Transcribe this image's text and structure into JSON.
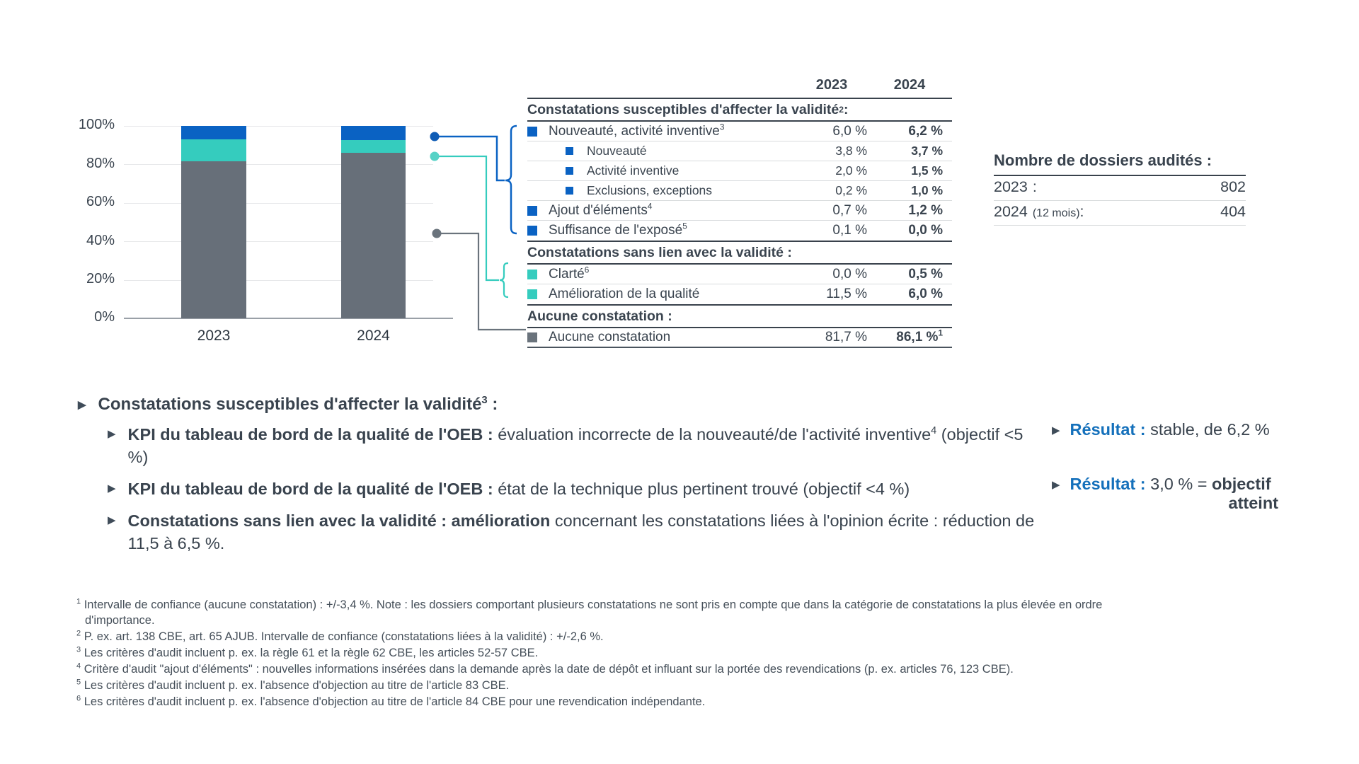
{
  "colors": {
    "validity_blue": "#0a62c3",
    "non_validity_teal": "#35ccbe",
    "no_finding_grey": "#676f79",
    "accent_blue_text": "#1470bb",
    "dark_rule": "#39424c"
  },
  "chart_data": {
    "type": "bar",
    "subtype": "stacked-100-percent",
    "categories": [
      "2023",
      "2024"
    ],
    "series": [
      {
        "name": "Constatations susceptibles d'affecter la validité",
        "color": "#0a62c3",
        "values": [
          6.8,
          7.4
        ]
      },
      {
        "name": "Constatations sans lien avec la validité",
        "color": "#35ccbe",
        "values": [
          11.5,
          6.5
        ]
      },
      {
        "name": "Aucune constatation",
        "color": "#676f79",
        "values": [
          81.7,
          86.1
        ]
      }
    ],
    "ylim": [
      0,
      100
    ],
    "yticks_top_down": [
      "100%",
      "80%",
      "60%",
      "40%",
      "20%",
      "0%"
    ],
    "grid": "horizontal",
    "legend": "none"
  },
  "table": {
    "col_headers": [
      "2023",
      "2024"
    ],
    "sections": [
      {
        "header": "Constatations susceptibles d'affecter la validité",
        "header_sup": "2",
        "header_after": " :",
        "rows": [
          {
            "label": "Nouveauté, activité inventive",
            "sup": "3",
            "v1": "6,0 %",
            "v2": "6,2 %"
          },
          {
            "label": "Nouveauté",
            "v1": "3,8 %",
            "v2": "3,7 %"
          },
          {
            "label": "Activité inventive",
            "v1": "2,0 %",
            "v2": "1,5 %"
          },
          {
            "label": "Exclusions, exceptions",
            "v1": "0,2 %",
            "v2": "1,0 %"
          },
          {
            "label": "Ajout d'éléments",
            "sup": "4",
            "v1": "0,7 %",
            "v2": "1,2 %"
          },
          {
            "label": "Suffisance de l'exposé",
            "sup": "5",
            "v1": "0,1 %",
            "v2": "0,0 %"
          }
        ]
      },
      {
        "header": "Constatations sans lien avec la validité :",
        "rows": [
          {
            "label": "Clarté",
            "sup": "6",
            "v1": "0,0 %",
            "v2": "0,5 %"
          },
          {
            "label": "Amélioration de la qualité",
            "v1": "11,5 %",
            "v2": "6,0 %"
          }
        ]
      },
      {
        "header": "Aucune constatation :",
        "rows": [
          {
            "label": "Aucune constatation",
            "v1": "81,7 %",
            "v2": "86,1 %",
            "v2_sup": "1"
          }
        ]
      }
    ]
  },
  "audited": {
    "title": "Nombre de dossiers audités :",
    "rows": [
      {
        "year": "2023",
        "note": "",
        "colon": " :",
        "value": "802"
      },
      {
        "year": "2024",
        "note": "(12 mois)",
        "colon": " :",
        "value": "404"
      }
    ]
  },
  "bullets": {
    "l1": {
      "bold": "Constatations susceptibles d'affecter la validité",
      "sup": "3",
      "after": " :"
    },
    "items": [
      {
        "bold": "KPI du tableau de bord de la qualité de l'OEB :",
        "text": " évaluation incorrecte de la nouveauté/de l'activité inventive",
        "sup": "4",
        "after": " (objectif <5 %)"
      },
      {
        "bold": "KPI du tableau de bord de la qualité de l'OEB :",
        "text": " état de la technique plus pertinent trouvé (objectif <4 %)"
      },
      {
        "bold": "Constatations sans lien avec la validité : amélioration",
        "text": " concernant les constatations liées à l'opinion écrite : réduction de 11,5 à 6,5 %."
      }
    ]
  },
  "results": [
    {
      "label": "Résultat :",
      "text": " stable, de 6,2 %",
      "bold": "",
      "line2": ""
    },
    {
      "label": "Résultat :",
      "text": " 3,0 % = ",
      "bold": "objectif",
      "line2": "atteint"
    }
  ],
  "footnotes": [
    {
      "sup": "1",
      "text": "Intervalle de confiance (aucune constatation) : +/-3,4 %. Note : les dossiers comportant plusieurs constatations ne sont pris en compte que dans la catégorie de constatations la plus élevée en ordre d'importance."
    },
    {
      "sup": "2",
      "text": "P. ex. art. 138 CBE, art. 65 AJUB. Intervalle de confiance (constatations liées à la validité) : +/-2,6 %."
    },
    {
      "sup": "3",
      "text": "Les critères d'audit incluent p. ex. la règle 61 et la règle 62 CBE, les articles 52-57 CBE."
    },
    {
      "sup": "4",
      "text": "Critère d'audit \"ajout d'éléments\" : nouvelles informations insérées dans la demande après la date de dépôt et influant sur la portée des revendications (p. ex. articles 76, 123 CBE)."
    },
    {
      "sup": "5",
      "text": "Les critères d'audit incluent p. ex. l'absence d'objection au titre de l'article 83 CBE."
    },
    {
      "sup": "6",
      "text": "Les critères d'audit incluent p. ex. l'absence d'objection au titre de l'article 84 CBE pour une revendication indépendante."
    }
  ]
}
